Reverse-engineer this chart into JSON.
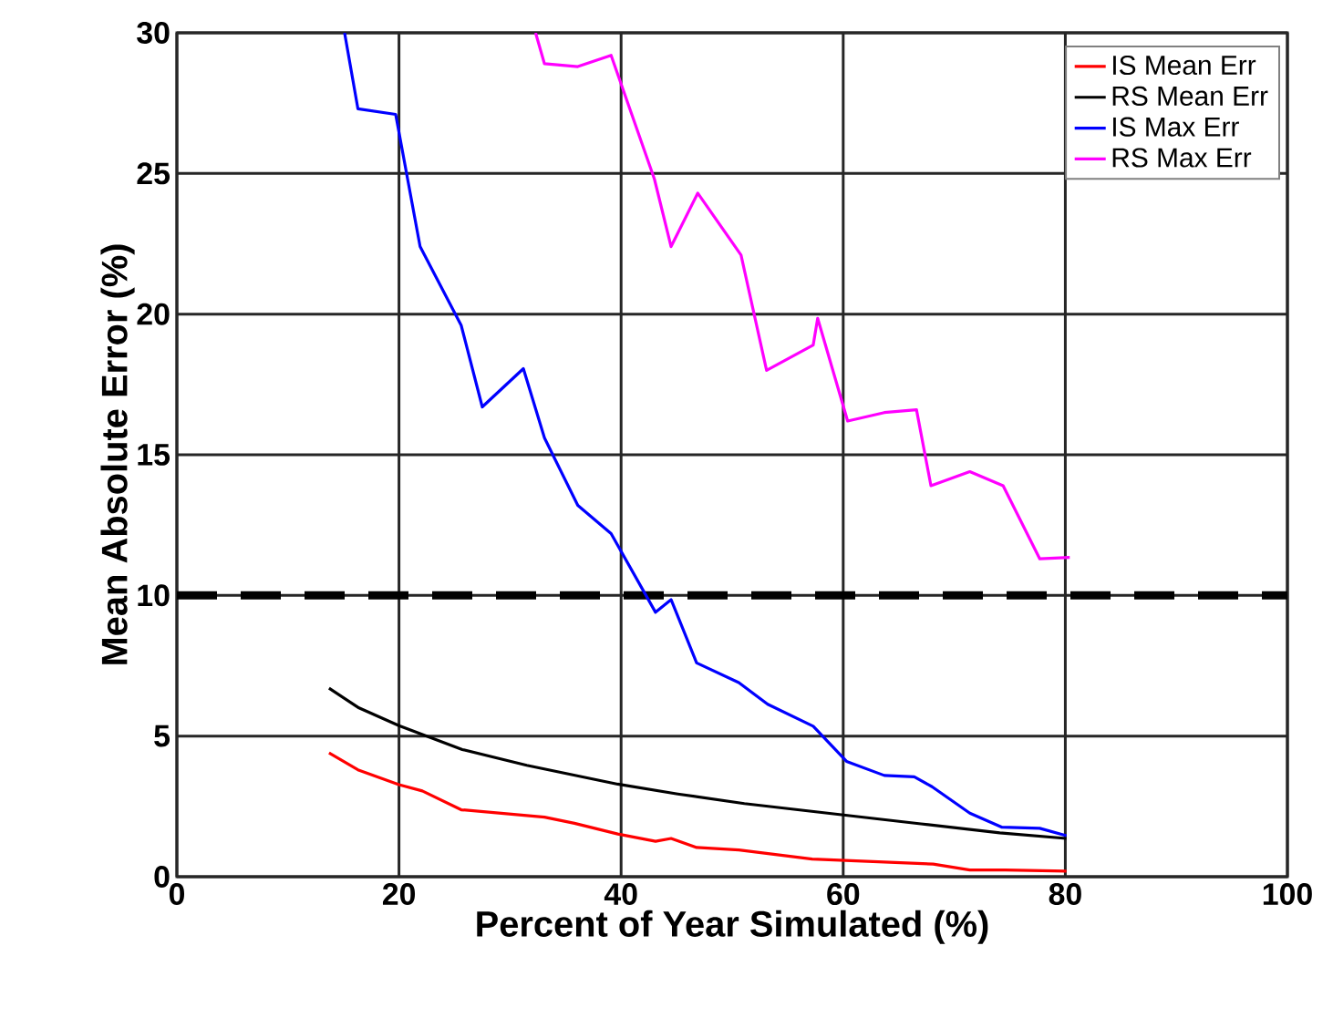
{
  "chart_data": {
    "type": "line",
    "xlabel": "Percent of Year Simulated (%)",
    "ylabel": "Mean Absolute Error (%)",
    "xlim": [
      0,
      100
    ],
    "ylim": [
      0,
      30
    ],
    "xticks": [
      0,
      20,
      40,
      60,
      80,
      100
    ],
    "yticks": [
      0,
      5,
      10,
      15,
      20,
      25,
      30
    ],
    "grid": true,
    "legend": "top right",
    "series": [
      {
        "name": "IS Mean Err",
        "color": "#ff0000",
        "x": [
          13.7,
          16.3,
          20,
          22.1,
          25.6,
          33.1,
          35.8,
          39.7,
          43.1,
          44.5,
          46.8,
          50.6,
          57.2,
          68.1,
          71.4,
          74.6,
          80.1
        ],
        "values": [
          4.4,
          3.8,
          3.27,
          3.05,
          2.38,
          2.12,
          1.9,
          1.52,
          1.26,
          1.36,
          1.04,
          0.95,
          0.63,
          0.45,
          0.24,
          0.24,
          0.2
        ]
      },
      {
        "name": "RS Mean Err",
        "color": "#000000",
        "x": [
          13.7,
          16.4,
          20,
          25.7,
          31.5,
          39.7,
          45.1,
          51.1,
          57.7,
          67,
          74.1,
          80.1
        ],
        "values": [
          6.7,
          6.0,
          5.37,
          4.52,
          3.96,
          3.29,
          2.94,
          2.6,
          2.3,
          1.88,
          1.56,
          1.36
        ]
      },
      {
        "name": "IS Max Err",
        "color": "#0000ff",
        "x": [
          15.1,
          16.3,
          19.7,
          21.9,
          25.6,
          27.5,
          31.2,
          33.1,
          36.1,
          39.1,
          43.1,
          44.5,
          46.8,
          50.6,
          53.2,
          57.3,
          60.3,
          63.7,
          66.4,
          68,
          71.4,
          74.3,
          77.7,
          80.1
        ],
        "values": [
          30,
          27.3,
          27.1,
          22.4,
          19.6,
          16.7,
          18.06,
          15.6,
          13.2,
          12.2,
          9.4,
          9.85,
          7.6,
          6.9,
          6.13,
          5.35,
          4.1,
          3.6,
          3.55,
          3.2,
          2.26,
          1.76,
          1.72,
          1.46
        ]
      },
      {
        "name": "RS Max Err",
        "color": "#ff00ff",
        "x": [
          32.3,
          33.1,
          36.1,
          39.1,
          43,
          44.5,
          46.9,
          50.8,
          53.1,
          57.3,
          57.7,
          60.4,
          63.7,
          66.6,
          67.9,
          71.4,
          74.4,
          77.7,
          80.4
        ],
        "values": [
          30,
          28.9,
          28.8,
          29.2,
          24.8,
          22.4,
          24.3,
          22.1,
          18.0,
          18.9,
          19.85,
          16.2,
          16.5,
          16.6,
          13.9,
          14.4,
          13.9,
          11.3,
          11.35
        ]
      }
    ],
    "ref_lines": [
      {
        "axis": "y",
        "value": 10,
        "color": "#000000",
        "line_style": "dashed"
      }
    ]
  }
}
